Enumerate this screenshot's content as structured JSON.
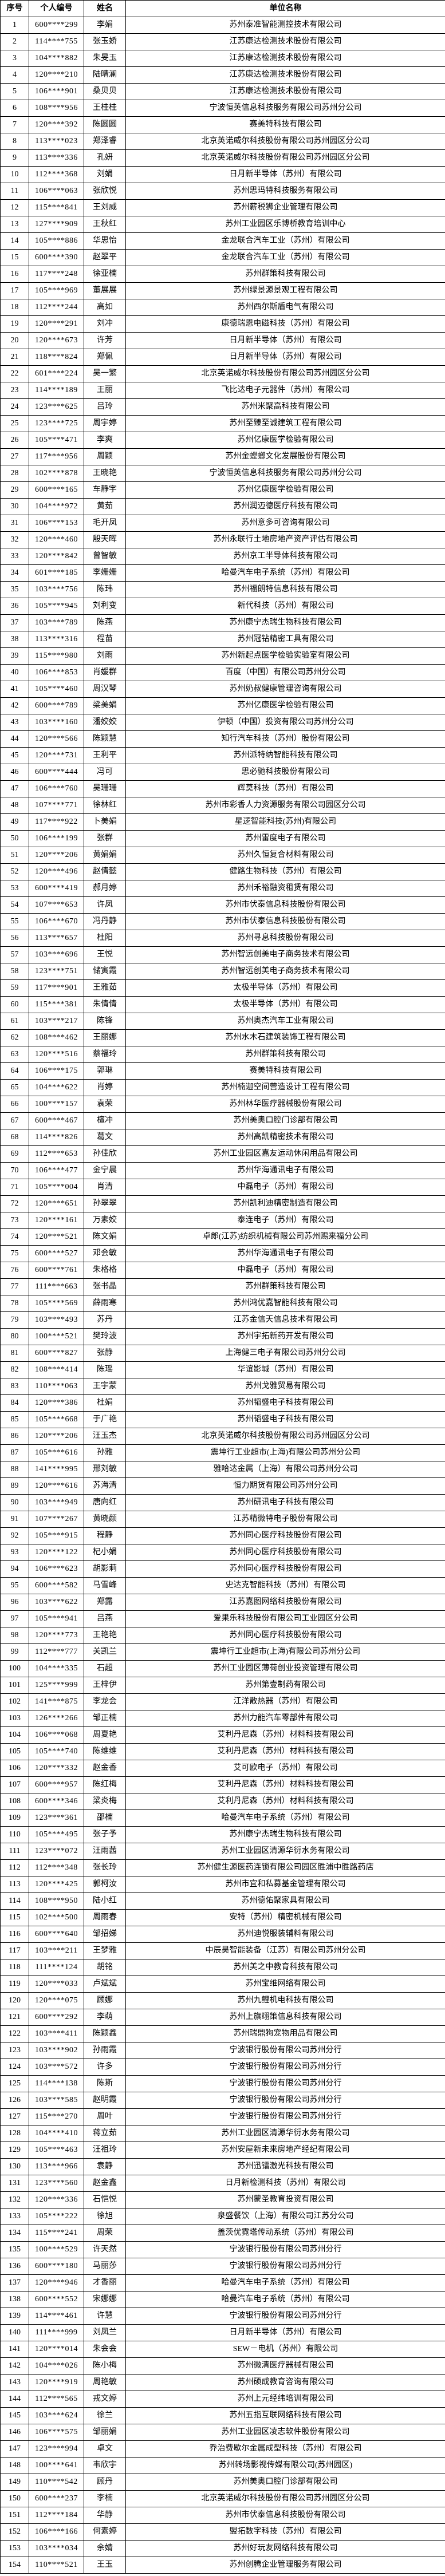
{
  "colors": {
    "border": "#000000",
    "text": "#000000",
    "background": "#ffffff"
  },
  "table": {
    "headers": {
      "index": "序号",
      "personal_id": "个人编号",
      "name": "姓名",
      "company": "单位名称"
    },
    "rows": [
      [
        1,
        "600****299",
        "李娟",
        "苏州泰准智能测控技术有限公司"
      ],
      [
        2,
        "114****755",
        "张玉娇",
        "江苏康达检测技术股份有限公司"
      ],
      [
        3,
        "104****882",
        "朱旻玉",
        "江苏康达检测技术股份有限公司"
      ],
      [
        4,
        "120****210",
        "陆晴澜",
        "江苏康达检测技术股份有限公司"
      ],
      [
        5,
        "106****901",
        "桑贝贝",
        "江苏康达检测技术股份有限公司"
      ],
      [
        6,
        "108****956",
        "王桂桂",
        "宁波恒英信息科技服务有限公司苏州分公司"
      ],
      [
        7,
        "120****392",
        "陈圆圆",
        "赛美特科技有限公司"
      ],
      [
        8,
        "113****023",
        "郑泽睿",
        "北京英诺威尔科技股份有限公司苏州园区分公司"
      ],
      [
        9,
        "113****336",
        "孔妍",
        "北京英诺威尔科技股份有限公司苏州园区分公司"
      ],
      [
        10,
        "112****368",
        "刘娟",
        "日月新半导体（苏州）有限公司"
      ],
      [
        11,
        "106****063",
        "张欣悦",
        "苏州思玛特科技服务有限公司"
      ],
      [
        12,
        "115****841",
        "王刘威",
        "苏州薪税狮企业管理有限公司"
      ],
      [
        13,
        "127****909",
        "王秋红",
        "苏州工业园区乐博桥教育培训中心"
      ],
      [
        14,
        "105****886",
        "华思怡",
        "金龙联合汽车工业（苏州）有限公司"
      ],
      [
        15,
        "600****390",
        "赵翠平",
        "金龙联合汽车工业（苏州）有限公司"
      ],
      [
        16,
        "117****248",
        "徐亚楠",
        "苏州群策科技有限公司"
      ],
      [
        17,
        "105****969",
        "董展展",
        "苏州绿景源景观工程有限公司"
      ],
      [
        18,
        "112****244",
        "高如",
        "苏州西尔斯盾电气有限公司"
      ],
      [
        19,
        "120****291",
        "刘冲",
        "康德瑞恩电磁科技（苏州）有限公司"
      ],
      [
        20,
        "120****673",
        "许芳",
        "日月新半导体（苏州）有限公司"
      ],
      [
        21,
        "118****824",
        "郑佩",
        "日月新半导体（苏州）有限公司"
      ],
      [
        22,
        "601****224",
        "吴一繁",
        "北京英诺威尔科技股份有限公司苏州园区分公司"
      ],
      [
        23,
        "114****189",
        "王丽",
        "飞比达电子元器件（苏州）有限公司"
      ],
      [
        24,
        "123****625",
        "吕玲",
        "苏州米聚高科技有限公司"
      ],
      [
        25,
        "123****725",
        "周宇婷",
        "苏州至臻至诚建筑工程有限公司"
      ],
      [
        26,
        "105****471",
        "李爽",
        "苏州亿康医学检验有限公司"
      ],
      [
        27,
        "117****956",
        "周颖",
        "苏州金螳螂文化发展股份有限公司"
      ],
      [
        28,
        "102****878",
        "王晓艳",
        "宁波恒英信息科技服务有限公司苏州分公司"
      ],
      [
        29,
        "600****165",
        "车静宇",
        "苏州亿康医学检验有限公司"
      ],
      [
        30,
        "104****972",
        "黄茹",
        "苏州润迈德医疗科技有限公司"
      ],
      [
        31,
        "106****153",
        "毛开凤",
        "苏州意多可咨询有限公司"
      ],
      [
        32,
        "120****460",
        "殷天晖",
        "苏州永联行土地房地产资产评估有限公司"
      ],
      [
        33,
        "120****842",
        "曾智敏",
        "苏州京工半导体科技有限公司"
      ],
      [
        34,
        "601****185",
        "李姗姗",
        "哈曼汽车电子系统（苏州）有限公司"
      ],
      [
        35,
        "103****756",
        "陈玮",
        "苏州福朗特信息科技有限公司"
      ],
      [
        36,
        "105****945",
        "刘利变",
        "新代科技（苏州）有限公司"
      ],
      [
        37,
        "103****789",
        "陈燕",
        "苏州康宁杰瑞生物科技有限公司"
      ],
      [
        38,
        "113****316",
        "程苗",
        "苏州冠钻精密工具有限公司"
      ],
      [
        39,
        "115****980",
        "刘雨",
        "苏州新起点医学检验实验室有限公司"
      ],
      [
        40,
        "106****853",
        "肖媛群",
        "百度（中国）有限公司苏州分公司"
      ],
      [
        41,
        "105****460",
        "周汉琴",
        "苏州奶叔健康管理咨询有限公司"
      ],
      [
        42,
        "600****789",
        "梁美娟",
        "苏州亿康医学检验有限公司"
      ],
      [
        43,
        "103****160",
        "潘姣姣",
        "伊顿（中国）投资有限公司苏州分公司"
      ],
      [
        44,
        "120****566",
        "陈颖慧",
        "知行汽车科技（苏州）股份有限公司"
      ],
      [
        45,
        "120****731",
        "王利平",
        "苏州派特纳智能科技有限公司"
      ],
      [
        46,
        "600****444",
        "冯可",
        "思必驰科技股份有限公司"
      ],
      [
        47,
        "106****760",
        "吴珊珊",
        "辉莫科技（苏州）有限公司"
      ],
      [
        48,
        "107****771",
        "徐林红",
        "苏州市彩香人力资源服务有限公司园区分公司"
      ],
      [
        49,
        "117****922",
        "卜美娟",
        "星逻智能科技(苏州)有限公司"
      ],
      [
        50,
        "106****199",
        "张群",
        "苏州雷度电子有限公司"
      ],
      [
        51,
        "120****206",
        "黄娟娟",
        "苏州久恒复合材料有限公司"
      ],
      [
        52,
        "120****496",
        "赵倩懿",
        "健路生物科技（苏州）有限公司"
      ],
      [
        53,
        "600****419",
        "郝月婷",
        "苏州禾裕融资租赁有限公司"
      ],
      [
        54,
        "107****653",
        "许凤",
        "苏州市伏泰信息科技股份有限公司"
      ],
      [
        55,
        "106****670",
        "冯丹静",
        "苏州市伏泰信息科技股份有限公司"
      ],
      [
        56,
        "113****657",
        "杜阳",
        "苏州寻息科技股份有限公司"
      ],
      [
        57,
        "103****696",
        "王悦",
        "苏州智远创美电子商务技术有限公司"
      ],
      [
        58,
        "123****751",
        "储寅霞",
        "苏州智远创美电子商务技术有限公司"
      ],
      [
        59,
        "117****901",
        "王雅茹",
        "太极半导体（苏州）有限公司"
      ],
      [
        60,
        "115****381",
        "朱倩倩",
        "太极半导体（苏州）有限公司"
      ],
      [
        61,
        "103****217",
        "陈锋",
        "苏州奥杰汽车工业有限公司"
      ],
      [
        62,
        "108****462",
        "王丽娜",
        "苏州水木石建筑装饰工程有限公司"
      ],
      [
        63,
        "120****516",
        "蔡福玲",
        "苏州群策科技有限公司"
      ],
      [
        64,
        "106****175",
        "郭琳",
        "赛美特科技有限公司"
      ],
      [
        65,
        "104****622",
        "肖婷",
        "苏州楠迦空间营造设计工程有限公司"
      ],
      [
        66,
        "100****157",
        "袁荣",
        "苏州林华医疗器械股份有限公司"
      ],
      [
        67,
        "600****467",
        "檀冲",
        "苏州美奥口腔门诊部有限公司"
      ],
      [
        68,
        "114****826",
        "葛文",
        "苏州高凯精密技术有限公司"
      ],
      [
        69,
        "112****653",
        "孙佳欣",
        "苏州工业园区嘉友运动休闲用品有限公司"
      ],
      [
        70,
        "106****477",
        "金宁晨",
        "苏州华海通讯电子有限公司"
      ],
      [
        71,
        "105****004",
        "肖清",
        "中磊电子（苏州）有限公司"
      ],
      [
        72,
        "120****651",
        "孙翠翠",
        "苏州凯利迪精密制造有限公司"
      ],
      [
        73,
        "120****161",
        "万素姣",
        "泰连电子（苏州）有限公司"
      ],
      [
        74,
        "120****521",
        "陈文娟",
        "卓郎(江苏)纺织机械有限公司苏州赐来福分公司"
      ],
      [
        75,
        "600****527",
        "邓会敏",
        "苏州华海通讯电子有限公司"
      ],
      [
        76,
        "600****761",
        "朱格格",
        "中磊电子（苏州）有限公司"
      ],
      [
        77,
        "111****663",
        "张书晶",
        "苏州群策科技有限公司"
      ],
      [
        78,
        "105****569",
        "薛雨寒",
        "苏州鸿优嘉智能科技有限公司"
      ],
      [
        79,
        "103****493",
        "苏丹",
        "江苏金信天信息技术有限公司"
      ],
      [
        80,
        "100****521",
        "樊玲波",
        "苏州宇拓新药开发有限公司"
      ],
      [
        81,
        "600****827",
        "张静",
        "上海健三电子有限公司苏州分公司"
      ],
      [
        82,
        "108****414",
        "陈瑶",
        "华谊影城（苏州）有限公司"
      ],
      [
        83,
        "110****063",
        "王宇蒙",
        "苏州戈雅贸易有限公司"
      ],
      [
        84,
        "120****386",
        "杜娟",
        "苏州韬盛电子科技有限公司"
      ],
      [
        85,
        "105****668",
        "于广艳",
        "苏州韬盛电子科技有限公司"
      ],
      [
        86,
        "120****206",
        "汪玉杰",
        "北京英诺威尔科技股份有限公司苏州园区分公司"
      ],
      [
        87,
        "105****616",
        "孙雅",
        "震坤行工业超市(上海)有限公司苏州分公司"
      ],
      [
        88,
        "141****995",
        "邢刘敏",
        "雅哈达金属（上海）有限公司苏州分公司"
      ],
      [
        89,
        "120****616",
        "苏海清",
        "恒力期货有限公司苏州分公司"
      ],
      [
        90,
        "103****949",
        "唐向红",
        "苏州研讯电子科技有限公司"
      ],
      [
        91,
        "107****267",
        "黄晓颜",
        "江苏精微特电子股份有限公司"
      ],
      [
        92,
        "105****915",
        "程静",
        "苏州同心医疗科技股份有限公司"
      ],
      [
        93,
        "120****122",
        "杞小娟",
        "苏州同心医疗科技股份有限公司"
      ],
      [
        94,
        "106****623",
        "胡影莉",
        "苏州同心医疗科技股份有限公司"
      ],
      [
        95,
        "600****582",
        "马雪峰",
        "史达克智能科技（苏州）有限公司"
      ],
      [
        96,
        "103****622",
        "郑露",
        "江苏嘉图网络科技股份有限公司"
      ],
      [
        97,
        "105****941",
        "吕燕",
        "爱果乐科技股份有限公司工业园区分公司"
      ],
      [
        98,
        "120****773",
        "王艳艳",
        "苏州同心医疗科技股份有限公司"
      ],
      [
        99,
        "112****777",
        "关凯兰",
        "震坤行工业超市(上海)有限公司苏州分公司"
      ],
      [
        100,
        "104****335",
        "石超",
        "苏州工业园区薄荷创业投资管理有限公司"
      ],
      [
        101,
        "125****999",
        "王梓伊",
        "苏州第壹制药有限公司"
      ],
      [
        102,
        "141****875",
        "李龙会",
        "江洋散热器（苏州）有限公司"
      ],
      [
        103,
        "126****266",
        "邹正楠",
        "苏州力能汽车零部件有限公司"
      ],
      [
        104,
        "106****068",
        "周夏艳",
        "艾利丹尼森（苏州）材料科技有限公司"
      ],
      [
        105,
        "105****740",
        "陈维维",
        "艾利丹尼森（苏州）材料科技有限公司"
      ],
      [
        106,
        "120****332",
        "赵金香",
        "艾可欧电子（苏州）有限公司"
      ],
      [
        107,
        "600****957",
        "陈红梅",
        "艾利丹尼森（苏州）材料科技有限公司"
      ],
      [
        108,
        "600****346",
        "梁炎梅",
        "艾利丹尼森（苏州）材料科技有限公司"
      ],
      [
        109,
        "123****361",
        "邵楠",
        "哈曼汽车电子系统（苏州）有限公司"
      ],
      [
        110,
        "105****495",
        "张子予",
        "苏州康宁杰瑞生物科技有限公司"
      ],
      [
        111,
        "123****072",
        "汪雨茜",
        "苏州工业园区清源华衍水务有限公司"
      ],
      [
        112,
        "112****348",
        "张长玲",
        "苏州健生源医药连锁有限公司园区胜浦中胜路药店"
      ],
      [
        113,
        "120****425",
        "郭柯汝",
        "苏州市宜和私募基金管理有限公司"
      ],
      [
        114,
        "108****950",
        "陆小红",
        "苏州德佑聚家具有限公司"
      ],
      [
        115,
        "102****500",
        "周雨春",
        "安特（苏州）精密机械有限公司"
      ],
      [
        116,
        "600****640",
        "邹招娣",
        "苏州迪悦服装辅料有限公司"
      ],
      [
        117,
        "103****211",
        "王梦雅",
        "中辰昊智能装备（江苏）有限公司苏州分公司"
      ],
      [
        118,
        "111****124",
        "胡铭",
        "苏州美之中教育科技有限公司"
      ],
      [
        119,
        "120****033",
        "卢斌斌",
        "苏州宝维网络有限公司"
      ],
      [
        120,
        "120****075",
        "顾娜",
        "苏州九鲤机电科技有限公司"
      ],
      [
        121,
        "600****292",
        "李萌",
        "苏州上旗翊策信息科技有限公司"
      ],
      [
        122,
        "103****411",
        "陈颖鑫",
        "苏州瑞鼎狗宠物用品有限公司"
      ],
      [
        123,
        "103****902",
        "孙雨霞",
        "宁波银行股份有限公司苏州分行"
      ],
      [
        124,
        "103****572",
        "许多",
        "宁波银行股份有限公司苏州分行"
      ],
      [
        125,
        "114****138",
        "陈斯",
        "宁波银行股份有限公司苏州分行"
      ],
      [
        126,
        "103****585",
        "赵明霞",
        "宁波银行股份有限公司苏州分行"
      ],
      [
        127,
        "115****270",
        "周叶",
        "宁波银行股份有限公司苏州分行"
      ],
      [
        128,
        "104****410",
        "蒋立茹",
        "苏州工业园区清源华衍水务有限公司"
      ],
      [
        129,
        "105****463",
        "汪祖玲",
        "苏州安屋新未来房地产经纪有限公司"
      ],
      [
        130,
        "113****966",
        "袁静",
        "苏州迅镭激光科技有限公司"
      ],
      [
        131,
        "123****560",
        "赵金鑫",
        "日月新检测科技（苏州）有限公司"
      ],
      [
        132,
        "120****336",
        "石恺悦",
        "苏州蒙圣教育投资有限公司"
      ],
      [
        133,
        "105****222",
        "徐旭",
        "泉盛餐饮（上海）有限公司江苏分公司"
      ],
      [
        134,
        "115****241",
        "周荣",
        "盖茨优霓塔传动系统（苏州）有限公司"
      ],
      [
        135,
        "100****529",
        "许天然",
        "宁波银行股份有限公司苏州分行"
      ],
      [
        136,
        "600****180",
        "马丽莎",
        "宁波银行股份有限公司苏州分行"
      ],
      [
        137,
        "120****946",
        "才香丽",
        "哈曼汽车电子系统（苏州）有限公司"
      ],
      [
        138,
        "600****552",
        "宋娜娜",
        "哈曼汽车电子系统（苏州）有限公司"
      ],
      [
        139,
        "114****461",
        "许慧",
        "宁波银行股份有限公司苏州分行"
      ],
      [
        140,
        "111****999",
        "刘凤兰",
        "日月新半导体（苏州）有限公司"
      ],
      [
        141,
        "120****014",
        "朱会会",
        "SEW－电机（苏州）有限公司"
      ],
      [
        142,
        "104****026",
        "陈小梅",
        "苏州微清医疗器械有限公司"
      ],
      [
        143,
        "120****919",
        "周艳敏",
        "苏州硕成教育咨询有限公司"
      ],
      [
        144,
        "112****565",
        "戎文婷",
        "苏州上元经纬培训有限公司"
      ],
      [
        145,
        "103****624",
        "徐兰",
        "苏州五指互联网络科技有限公司"
      ],
      [
        146,
        "106****575",
        "邹丽娟",
        "苏州工业园区凌志软件股份有限公司"
      ],
      [
        147,
        "123****994",
        "卓文",
        "乔治费歇尔金属成型科技（苏州）有限公司"
      ],
      [
        148,
        "100****641",
        "韦欣宇",
        "苏州转场影视传媒有限公司(苏州园区)"
      ],
      [
        149,
        "110****542",
        "顾丹",
        "苏州美奥口腔门诊部有限公司"
      ],
      [
        150,
        "600****237",
        "李楠",
        "北京英诺威尔科技股份有限公司苏州园区分公司"
      ],
      [
        151,
        "112****184",
        "华静",
        "苏州市伏泰信息科技股份有限公司"
      ],
      [
        152,
        "106****166",
        "何素婷",
        "盟拓数字科技（苏州）有限公司"
      ],
      [
        153,
        "103****034",
        "余婧",
        "苏州好玩友网络科技有限公司"
      ],
      [
        154,
        "110****521",
        "王玉",
        "苏州创腾企业管理服务有限公司"
      ]
    ]
  }
}
